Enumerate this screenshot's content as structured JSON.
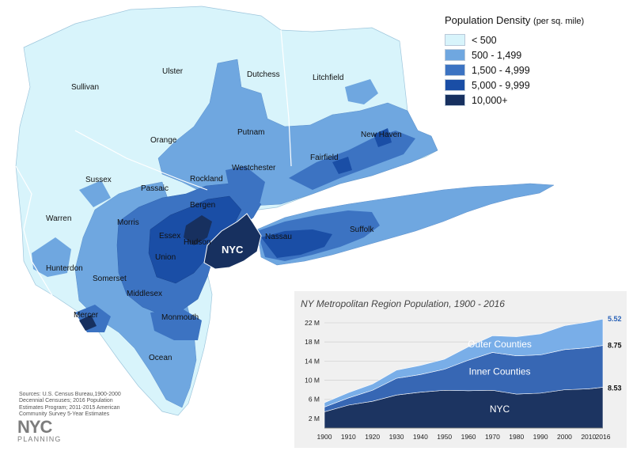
{
  "legend": {
    "title": "Population Density",
    "unit": "(per sq. mile)",
    "classes": [
      {
        "label": "< 500",
        "color": "#d8f4fb"
      },
      {
        "label": "500 - 1,499",
        "color": "#6fa7e0"
      },
      {
        "label": "1,500 - 4,999",
        "color": "#3c73c2"
      },
      {
        "label": "5,000 - 9,999",
        "color": "#1a4ea6"
      },
      {
        "label": "10,000+",
        "color": "#17305f"
      }
    ]
  },
  "map_labels": {
    "sullivan": "Sullivan",
    "ulster": "Ulster",
    "dutchess": "Dutchess",
    "litchfield": "Litchfield",
    "orange": "Orange",
    "putnam": "Putnam",
    "new_haven": "New Haven",
    "fairfield": "Fairfield",
    "sussex": "Sussex",
    "passaic": "Passaic",
    "rockland": "Rockland",
    "westchester": "Westchester",
    "bergen": "Bergen",
    "warren": "Warren",
    "morris": "Morris",
    "essex": "Essex",
    "hudson": "Hudson",
    "union": "Union",
    "nyc": "NYC",
    "nassau": "Nassau",
    "suffolk": "Suffolk",
    "hunterdon": "Hunterdon",
    "somerset": "Somerset",
    "middlesex": "Middlesex",
    "mercer": "Mercer",
    "monmouth": "Monmouth",
    "ocean": "Ocean"
  },
  "sources_text": "Sources: U.S. Census Bureau,1900-2000 Decennial Censuses; 2016 Population Estimates Program; 2011-2015 American Community Survey 5-Year Estimates",
  "logo": {
    "main": "NYC",
    "sub": "PLANNING"
  },
  "chart_data": {
    "type": "area",
    "title": "NY Metropolitan Region Population, 1900 - 2016",
    "stacked": true,
    "x": [
      1900,
      1910,
      1920,
      1930,
      1940,
      1950,
      1960,
      1970,
      1980,
      1990,
      2000,
      2010,
      2016
    ],
    "x_tick_labels": [
      "1900",
      "1910",
      "1920",
      "1930",
      "1940",
      "1950",
      "1960",
      "1970",
      "1980",
      "1990",
      "2000",
      "2010",
      "2016"
    ],
    "ylim": [
      0,
      22
    ],
    "y_ticks": [
      2,
      6,
      10,
      14,
      18,
      22
    ],
    "y_tick_labels": [
      "2 M",
      "6 M",
      "10 M",
      "14 M",
      "18 M",
      "22 M"
    ],
    "grid": true,
    "series": [
      {
        "name": "NYC",
        "color": "#1c3461",
        "values": [
          3.4,
          4.8,
          5.6,
          6.9,
          7.5,
          7.9,
          7.8,
          7.9,
          7.1,
          7.3,
          8.0,
          8.2,
          8.53
        ],
        "end_label": "8.53"
      },
      {
        "name": "Inner Counties",
        "color": "#3767b4",
        "values": [
          1.0,
          1.5,
          2.3,
          3.5,
          3.7,
          4.4,
          6.4,
          7.9,
          8.0,
          8.0,
          8.4,
          8.6,
          8.75
        ],
        "end_label": "8.75"
      },
      {
        "name": "Outer Counties",
        "color": "#79aee8",
        "values": [
          0.9,
          1.1,
          1.3,
          1.7,
          1.9,
          2.1,
          2.8,
          3.5,
          4.0,
          4.4,
          5.0,
          5.4,
          5.52
        ],
        "end_label": "5.52"
      }
    ],
    "end_label_colors": [
      "#111111",
      "#111111",
      "#2b63b8"
    ]
  }
}
